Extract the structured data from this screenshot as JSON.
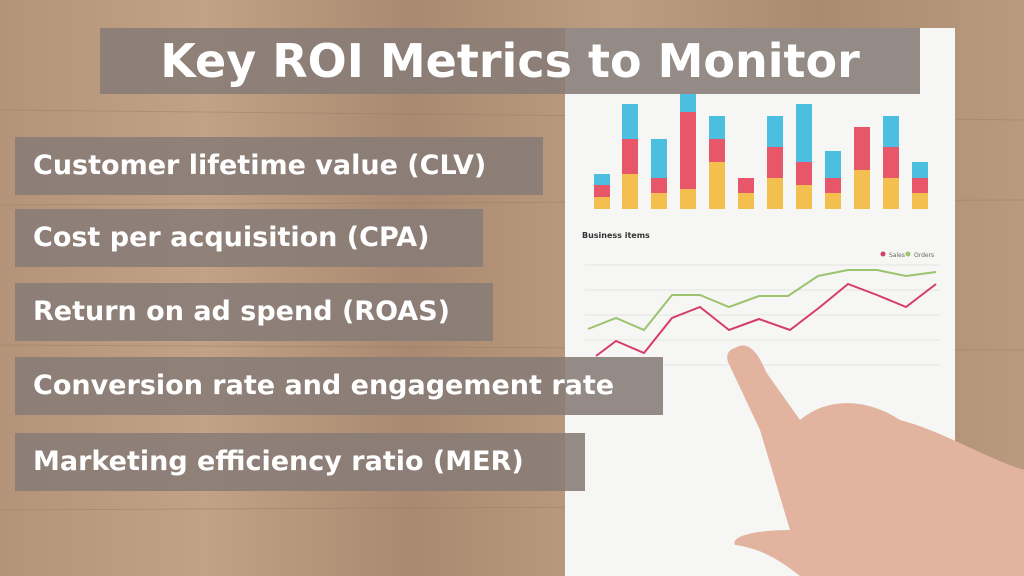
{
  "header": {
    "title": "Key ROI Metrics to Monitor"
  },
  "items": [
    "Customer lifetime value (CLV)",
    "Cost per acquisition (CPA)",
    "Return on ad spend (ROAS)",
    "Conversion rate and engagement rate",
    "Marketing efficiency ratio (MER)"
  ],
  "background": {
    "chart_title": "Business items",
    "legend": [
      "Sales",
      "Orders"
    ]
  }
}
